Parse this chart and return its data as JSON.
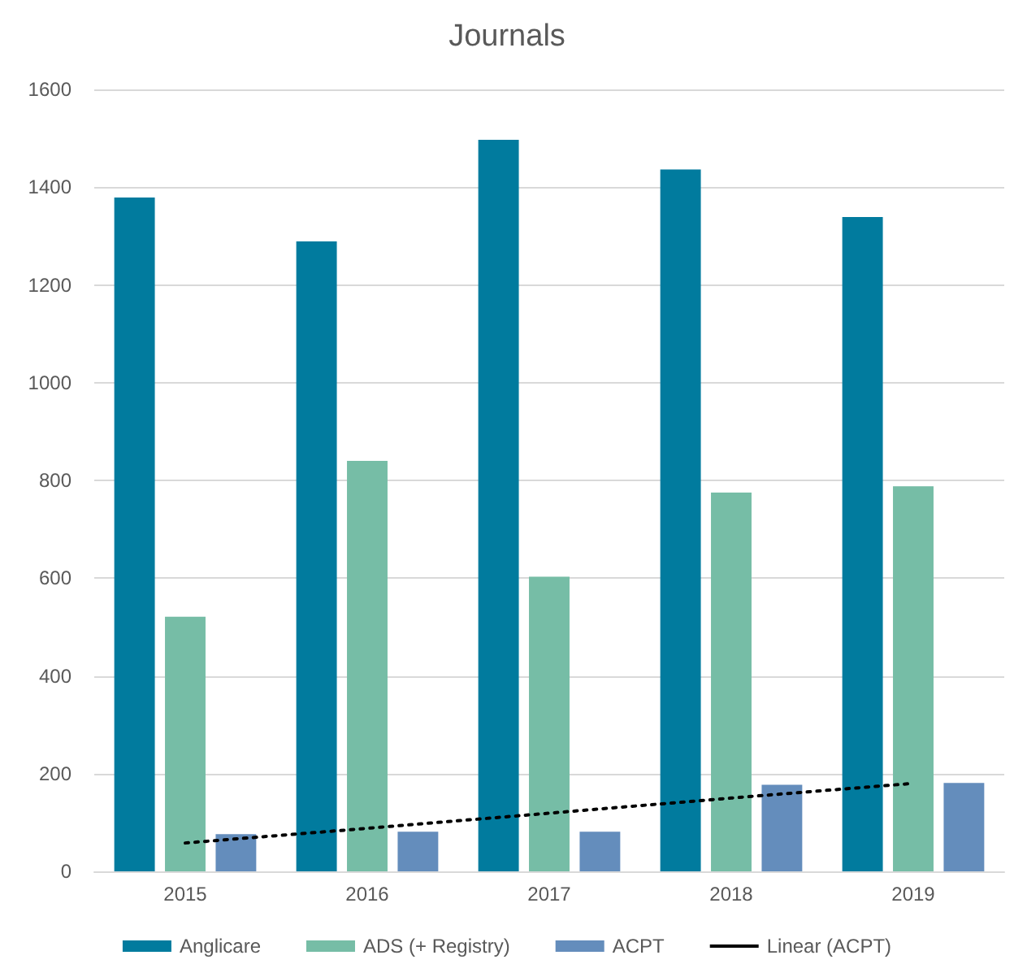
{
  "chart_data": {
    "type": "bar",
    "title": "Journals",
    "categories": [
      "2015",
      "2016",
      "2017",
      "2018",
      "2019"
    ],
    "series": [
      {
        "name": "Anglicare",
        "color": "#017b9e",
        "values": [
          1379,
          1289,
          1497,
          1436,
          1339
        ]
      },
      {
        "name": "ADS (+ Registry)",
        "color": "#76bda6",
        "values": [
          521,
          840,
          603,
          775,
          788
        ]
      },
      {
        "name": "ACPT",
        "color": "#648dbc",
        "values": [
          76,
          81,
          81,
          177,
          181
        ]
      },
      {
        "name": "Linear (ACPT)",
        "type": "line",
        "color": "#000000",
        "line_style": "dotted",
        "marker": "none",
        "values": [
          58,
          88,
          119,
          150,
          180
        ]
      }
    ],
    "ylim": [
      0,
      1600
    ],
    "yticks": [
      0,
      200,
      400,
      600,
      800,
      1000,
      1200,
      1400,
      1600
    ],
    "grid": "y",
    "legend": "bottom"
  }
}
